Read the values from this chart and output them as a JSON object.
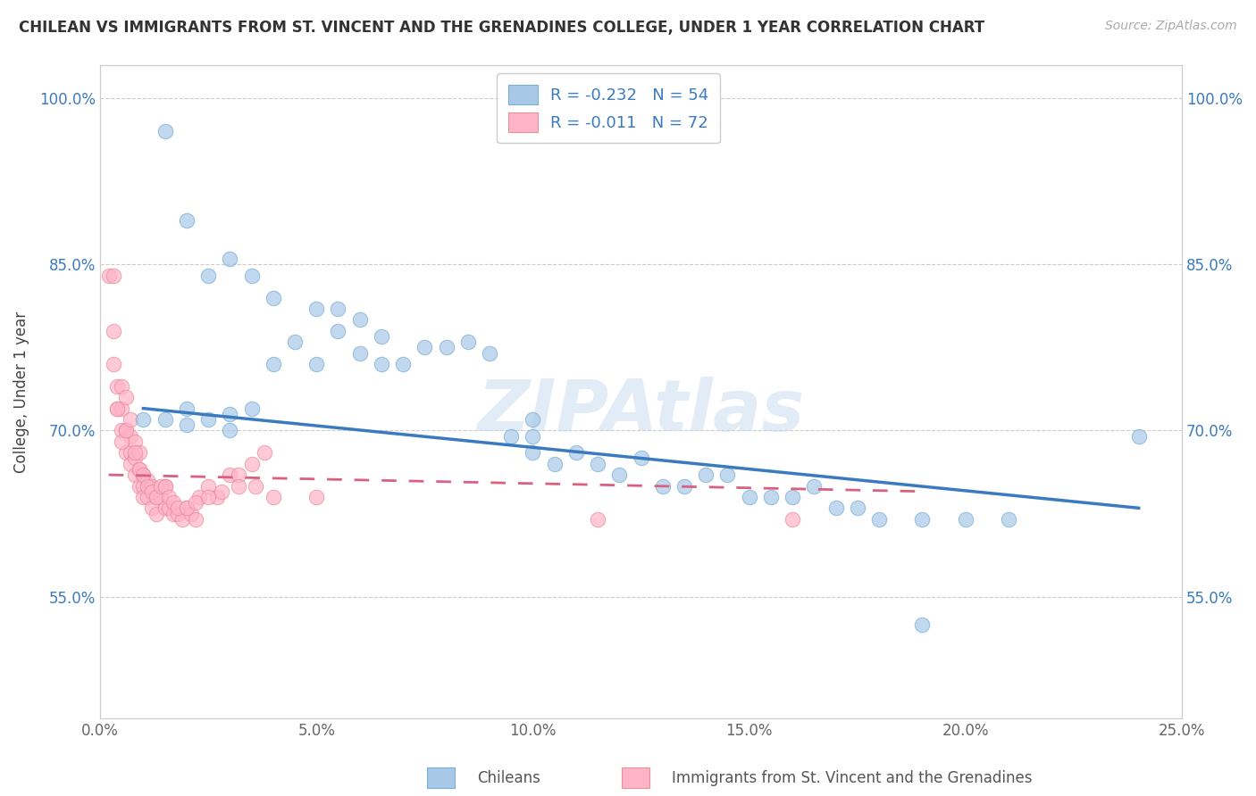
{
  "title": "CHILEAN VS IMMIGRANTS FROM ST. VINCENT AND THE GRENADINES COLLEGE, UNDER 1 YEAR CORRELATION CHART",
  "source": "Source: ZipAtlas.com",
  "ylabel": "College, Under 1 year",
  "color_chilean": "#a8c8e8",
  "color_chilean_edge": "#7bafd4",
  "color_immigrant": "#ffb3c6",
  "color_immigrant_edge": "#e88fa0",
  "color_chilean_line": "#3a7abf",
  "color_immigrant_line": "#d96080",
  "R_chilean": -0.232,
  "N_chilean": 54,
  "R_immigrant": -0.011,
  "N_immigrant": 72,
  "legend_label_chilean": "Chileans",
  "legend_label_immigrant": "Immigrants from St. Vincent and the Grenadines",
  "watermark": "ZIPAtlas",
  "xmin": 0.0,
  "xmax": 0.25,
  "ymin": 0.44,
  "ymax": 1.03,
  "yticks": [
    0.55,
    0.7,
    0.85,
    1.0
  ],
  "ytick_labels": [
    "55.0%",
    "70.0%",
    "85.0%",
    "100.0%"
  ],
  "xticks": [
    0.0,
    0.05,
    0.1,
    0.15,
    0.2,
    0.25
  ],
  "xtick_labels": [
    "0.0%",
    "5.0%",
    "10.0%",
    "15.0%",
    "20.0%",
    "25.0%"
  ],
  "chilean_x": [
    0.015,
    0.02,
    0.02,
    0.025,
    0.03,
    0.03,
    0.035,
    0.04,
    0.04,
    0.045,
    0.05,
    0.05,
    0.055,
    0.055,
    0.06,
    0.06,
    0.065,
    0.065,
    0.07,
    0.075,
    0.08,
    0.085,
    0.09,
    0.095,
    0.1,
    0.1,
    0.105,
    0.11,
    0.115,
    0.12,
    0.125,
    0.13,
    0.135,
    0.14,
    0.145,
    0.15,
    0.155,
    0.16,
    0.165,
    0.17,
    0.175,
    0.18,
    0.19,
    0.2,
    0.21,
    0.24,
    0.01,
    0.015,
    0.02,
    0.025,
    0.03,
    0.035,
    0.1,
    0.19
  ],
  "chilean_y": [
    0.71,
    0.705,
    0.72,
    0.71,
    0.715,
    0.7,
    0.72,
    0.82,
    0.76,
    0.78,
    0.81,
    0.76,
    0.79,
    0.81,
    0.8,
    0.77,
    0.785,
    0.76,
    0.76,
    0.775,
    0.775,
    0.78,
    0.77,
    0.695,
    0.68,
    0.71,
    0.67,
    0.68,
    0.67,
    0.66,
    0.675,
    0.65,
    0.65,
    0.66,
    0.66,
    0.64,
    0.64,
    0.64,
    0.65,
    0.63,
    0.63,
    0.62,
    0.62,
    0.62,
    0.62,
    0.695,
    0.71,
    0.97,
    0.89,
    0.84,
    0.855,
    0.84,
    0.695,
    0.525
  ],
  "immigrant_x": [
    0.002,
    0.003,
    0.003,
    0.004,
    0.004,
    0.005,
    0.005,
    0.005,
    0.006,
    0.006,
    0.006,
    0.007,
    0.007,
    0.007,
    0.008,
    0.008,
    0.008,
    0.009,
    0.009,
    0.009,
    0.01,
    0.01,
    0.01,
    0.011,
    0.011,
    0.012,
    0.012,
    0.013,
    0.013,
    0.014,
    0.015,
    0.015,
    0.016,
    0.017,
    0.018,
    0.019,
    0.02,
    0.021,
    0.022,
    0.023,
    0.025,
    0.027,
    0.03,
    0.032,
    0.035,
    0.038,
    0.003,
    0.004,
    0.005,
    0.006,
    0.007,
    0.008,
    0.009,
    0.01,
    0.011,
    0.012,
    0.013,
    0.014,
    0.015,
    0.016,
    0.017,
    0.018,
    0.02,
    0.022,
    0.025,
    0.028,
    0.032,
    0.036,
    0.04,
    0.05,
    0.115,
    0.16
  ],
  "immigrant_y": [
    0.84,
    0.76,
    0.79,
    0.72,
    0.74,
    0.74,
    0.7,
    0.72,
    0.73,
    0.68,
    0.7,
    0.68,
    0.695,
    0.67,
    0.66,
    0.675,
    0.69,
    0.65,
    0.665,
    0.68,
    0.65,
    0.64,
    0.66,
    0.64,
    0.655,
    0.63,
    0.65,
    0.64,
    0.625,
    0.64,
    0.63,
    0.65,
    0.63,
    0.625,
    0.625,
    0.62,
    0.63,
    0.625,
    0.62,
    0.64,
    0.65,
    0.64,
    0.66,
    0.66,
    0.67,
    0.68,
    0.84,
    0.72,
    0.69,
    0.7,
    0.71,
    0.68,
    0.665,
    0.66,
    0.65,
    0.645,
    0.64,
    0.65,
    0.65,
    0.64,
    0.635,
    0.63,
    0.63,
    0.635,
    0.64,
    0.645,
    0.65,
    0.65,
    0.64,
    0.64,
    0.62,
    0.62
  ]
}
